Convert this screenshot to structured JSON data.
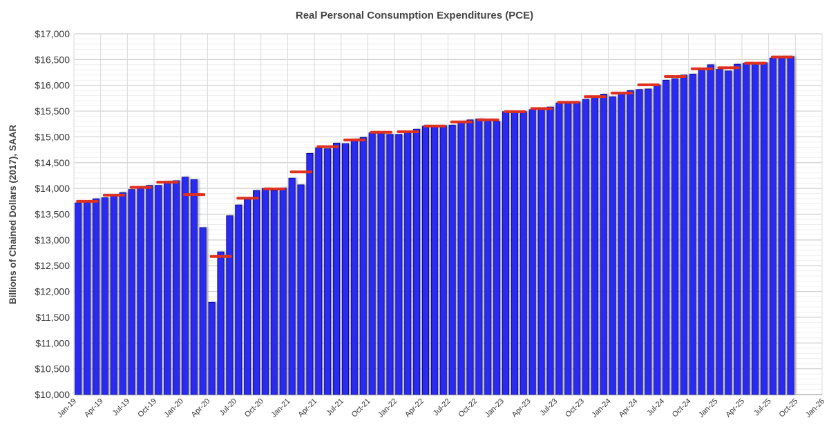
{
  "chart_data": {
    "type": "bar",
    "title": "Real Personal Consumption Expenditures (PCE)",
    "ylabel": "Billions of Chained Dollars (2017), SAAR",
    "xlabel": "",
    "ylim": [
      10000,
      17000
    ],
    "yticks": [
      10000,
      10500,
      11000,
      11500,
      12000,
      12500,
      13000,
      13500,
      14000,
      14500,
      15000,
      15500,
      16000,
      16500,
      17000
    ],
    "ytick_labels": [
      "$10,000",
      "$10,500",
      "$11,000",
      "$11,500",
      "$12,000",
      "$12,500",
      "$13,000",
      "$13,500",
      "$14,000",
      "$14,500",
      "$15,000",
      "$15,500",
      "$16,000",
      "$16,500",
      "$17,000"
    ],
    "xtick_labels": [
      "Jan-19",
      "Apr-19",
      "Jul-19",
      "Oct-19",
      "Jan-20",
      "Apr-20",
      "Jul-20",
      "Oct-20",
      "Jan-21",
      "Apr-21",
      "Jul-21",
      "Oct-21",
      "Jan-22",
      "Apr-22",
      "Jul-22",
      "Oct-22",
      "Jan-23",
      "Apr-23",
      "Jul-23",
      "Oct-23",
      "Jan-24",
      "Apr-24",
      "Jul-24",
      "Oct-24",
      "Jan-25",
      "Apr-25",
      "Jul-25",
      "Oct-25",
      "Jan-26"
    ],
    "grid": true,
    "colors": {
      "bar": "#2b2bf0",
      "bar_edge": "#00008b",
      "quarterly": "#e0301e",
      "grid": "#d9d9d9"
    },
    "monthly_series": {
      "start": "Jan-19",
      "values": [
        13720,
        13730,
        13800,
        13820,
        13870,
        13920,
        13980,
        14030,
        14060,
        14060,
        14140,
        14150,
        14220,
        14170,
        13240,
        11790,
        12770,
        13470,
        13680,
        13790,
        13960,
        14000,
        13960,
        14010,
        14200,
        14070,
        14680,
        14790,
        14770,
        14880,
        14870,
        14960,
        14990,
        15080,
        15090,
        15050,
        15050,
        15080,
        15150,
        15210,
        15200,
        15220,
        15230,
        15300,
        15330,
        15350,
        15320,
        15300,
        15490,
        15480,
        15490,
        15530,
        15540,
        15580,
        15660,
        15670,
        15680,
        15730,
        15780,
        15830,
        15780,
        15840,
        15900,
        15920,
        15930,
        16010,
        16100,
        16130,
        16200,
        16220,
        16300,
        16400,
        16310,
        16280,
        16410,
        16430,
        16420,
        16440,
        16530,
        16560,
        16560
      ]
    },
    "quarterly_series": {
      "start": "Q1-19",
      "values": [
        13750,
        13870,
        14020,
        14120,
        13880,
        12680,
        13810,
        13990,
        14320,
        14810,
        14940,
        15090,
        15100,
        15210,
        15290,
        15330,
        15490,
        15550,
        15670,
        15780,
        15850,
        16010,
        16170,
        16320,
        16340,
        16430,
        16550
      ]
    }
  }
}
